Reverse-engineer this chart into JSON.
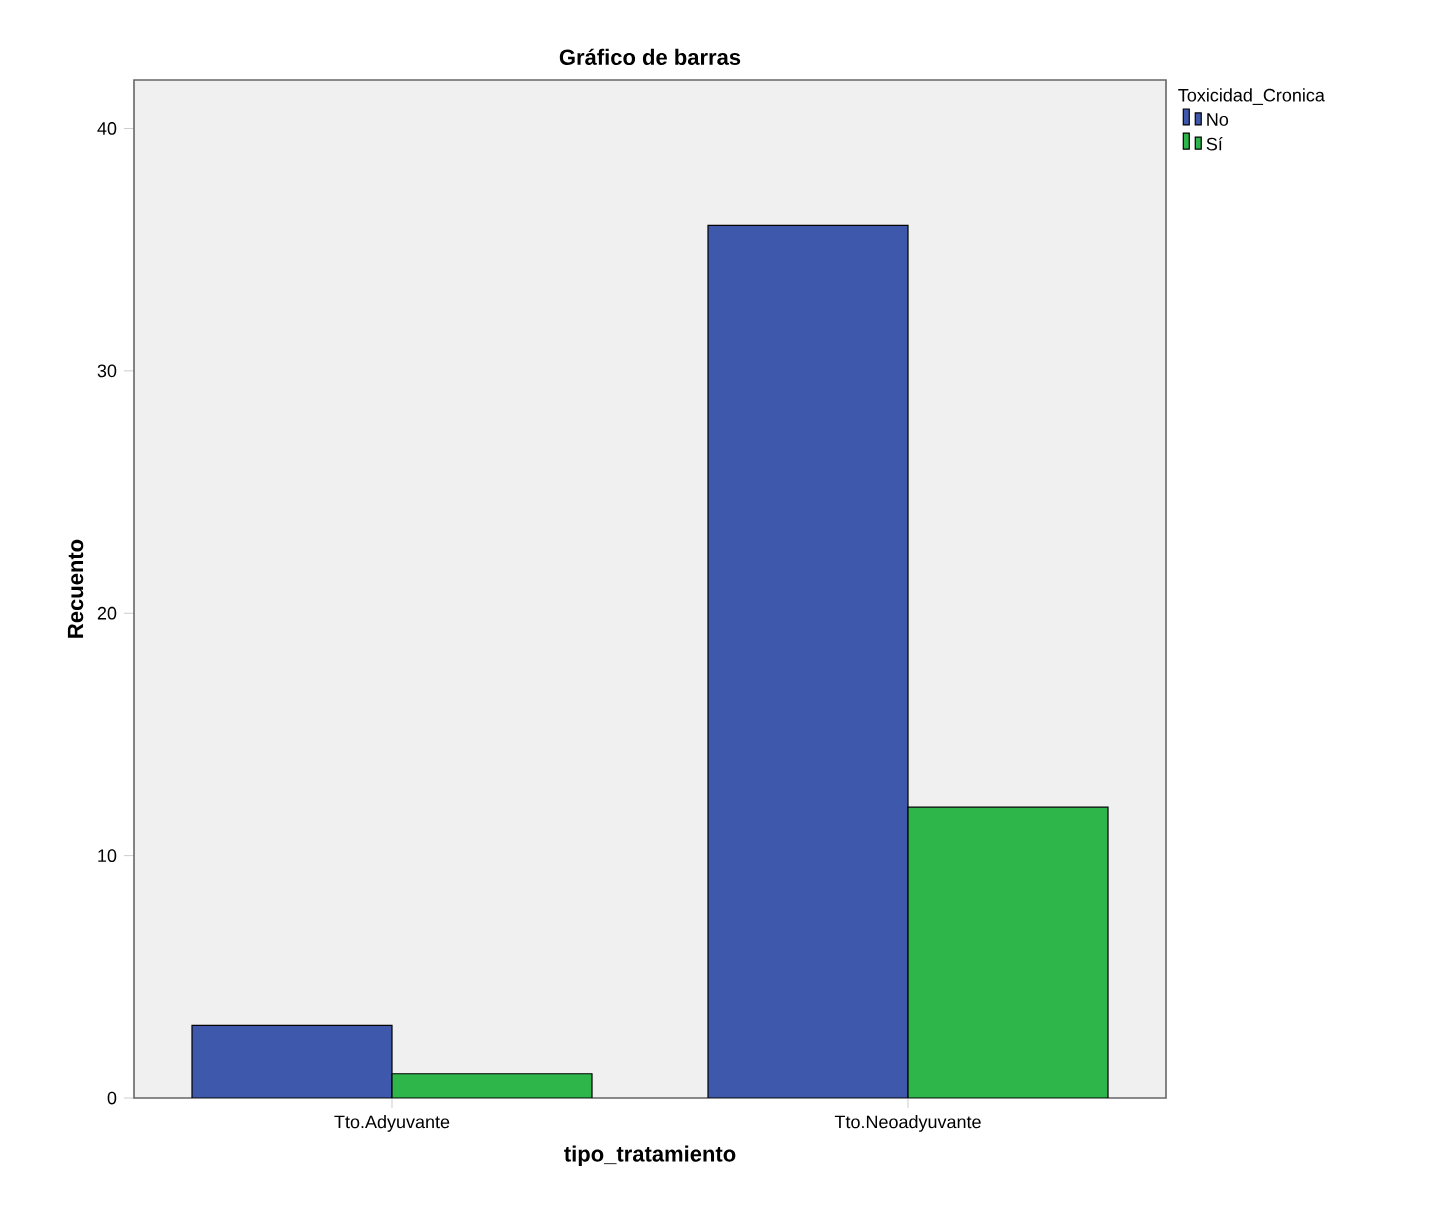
{
  "chart_data": {
    "type": "bar",
    "title": "Gráfico de barras",
    "xlabel": "tipo_tratamiento",
    "ylabel": "Recuento",
    "legend_title": "Toxicidad_Cronica",
    "categories": [
      "Tto.Adyuvante",
      "Tto.Neoadyuvante"
    ],
    "series": [
      {
        "name": "No",
        "color": "#3e58ac",
        "values": [
          3,
          36
        ]
      },
      {
        "name": "Sí",
        "color": "#2fb64a",
        "values": [
          1,
          12
        ]
      }
    ],
    "ylim": [
      0,
      42
    ],
    "yticks": [
      0,
      10,
      20,
      30,
      40
    ],
    "legend": "top right"
  }
}
